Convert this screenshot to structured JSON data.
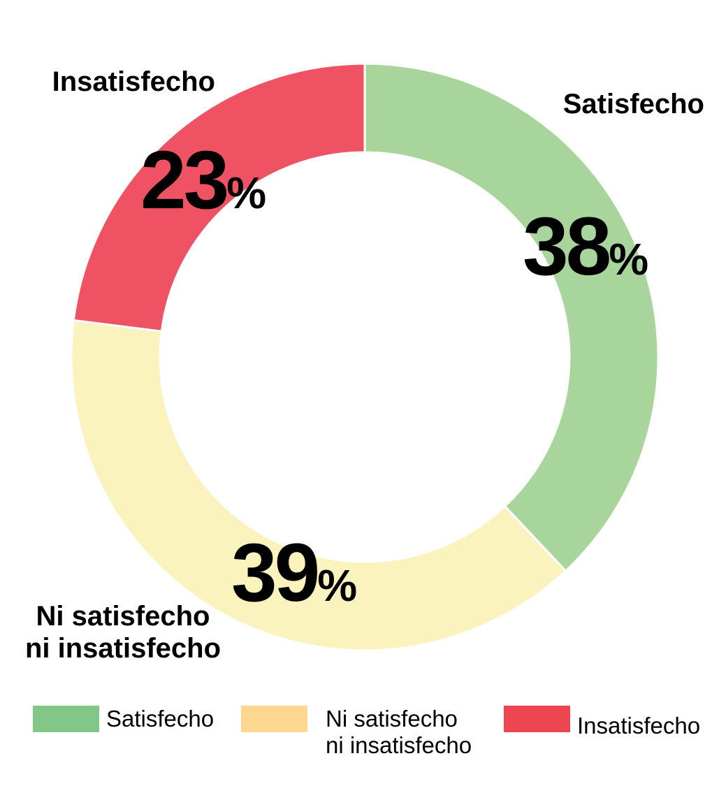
{
  "chart_data": {
    "type": "pie",
    "variant": "donut",
    "categories": [
      "Satisfecho",
      "Ni satisfecho ni insatisfecho",
      "Insatisfecho"
    ],
    "values": [
      38,
      39,
      23
    ],
    "unit": "%",
    "colors": [
      "#a8d59b",
      "#fbf3bd",
      "#ef5262"
    ],
    "legend_colors": [
      "#82c688",
      "#fdd68f",
      "#ed4650"
    ],
    "slice_labels": {
      "satisfecho": {
        "name": "Satisfecho",
        "value": "38",
        "suffix": "%"
      },
      "neutral": {
        "name_line1": "Ni satisfecho",
        "name_line2": "ni insatisfecho",
        "value": "39",
        "suffix": "%"
      },
      "insatisfecho": {
        "name": "Insatisfecho",
        "value": "23",
        "suffix": "%"
      }
    },
    "legend_position": "bottom",
    "legend": [
      {
        "label": "Satisfecho"
      },
      {
        "label": "Ni satisfecho\nni insatisfecho"
      },
      {
        "label": "Insatisfecho"
      }
    ]
  }
}
